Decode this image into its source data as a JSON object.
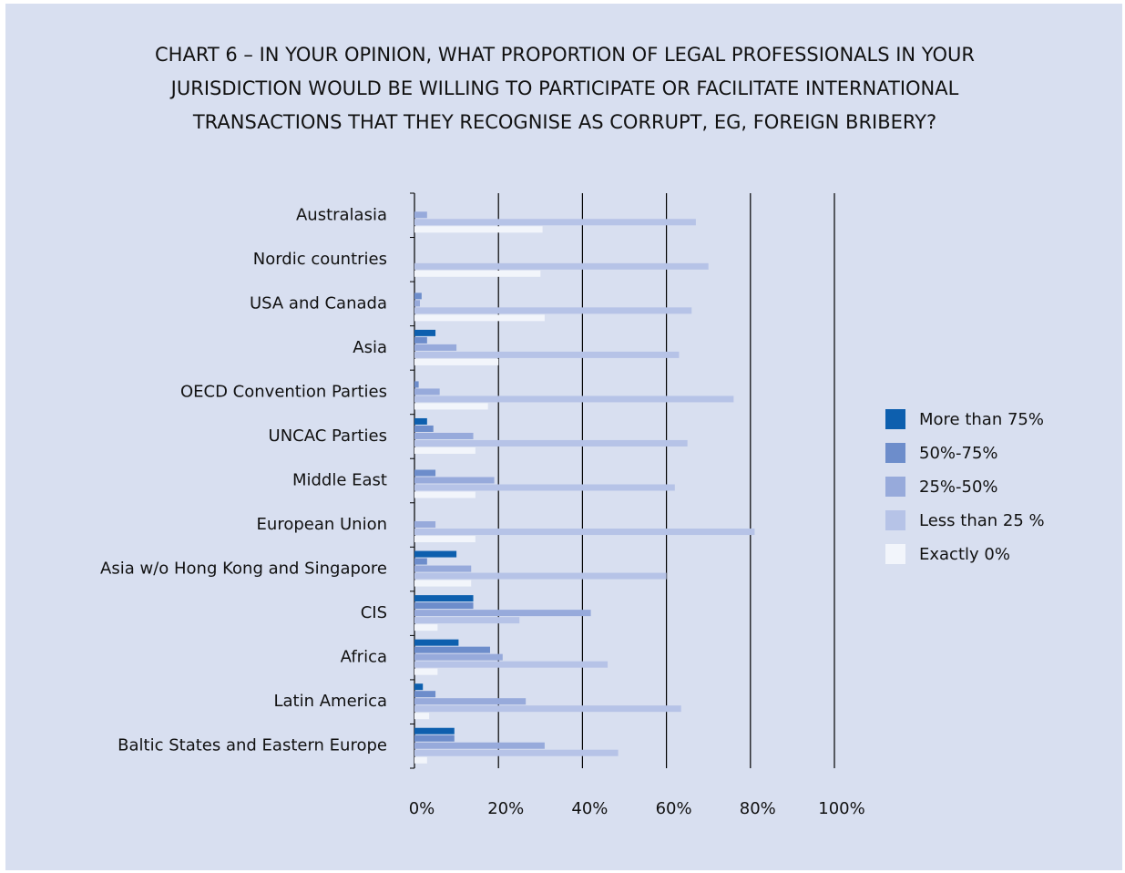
{
  "chart_data": {
    "type": "hbar",
    "title": "CHART 6 – IN YOUR OPINION, WHAT PROPORTION OF LEGAL PROFESSIONALS IN YOUR JURISDICTION WOULD BE WILLING TO PARTICIPATE OR FACILITATE INTERNATIONAL TRANSACTIONS THAT THEY RECOGNISE AS CORRUPT, EG, FOREIGN BRIBERY?",
    "categories": [
      "Australasia",
      "Nordic countries",
      "USA and Canada",
      "Asia",
      "OECD Convention Parties",
      "UNCAC Parties",
      "Middle East",
      "European Union",
      "Asia w/o Hong Kong and Singapore",
      "CIS",
      "Africa",
      "Latin America",
      "Baltic States and Eastern Europe"
    ],
    "series": [
      {
        "name": "More than 75%",
        "color": "#0d5fae",
        "values": [
          0,
          0,
          0,
          5,
          0,
          3,
          0,
          0,
          10,
          14,
          10.5,
          2,
          9.5
        ]
      },
      {
        "name": "50%-75%",
        "color": "#6d8dcb",
        "values": [
          0,
          0,
          1.7,
          3,
          1,
          4.5,
          5,
          0,
          3,
          14,
          18,
          5,
          9.5
        ]
      },
      {
        "name": "25%-50%",
        "color": "#97aadb",
        "values": [
          3,
          0,
          1.3,
          10,
          6,
          14,
          19,
          5,
          13.5,
          42,
          21,
          26.5,
          31
        ]
      },
      {
        "name": "Less than 25 %",
        "color": "#b6c3e7",
        "values": [
          67,
          70,
          66,
          63,
          76,
          65,
          62,
          81,
          60,
          25,
          46,
          63.5,
          48.5
        ]
      },
      {
        "name": "Exactly 0%",
        "color": "#f2f5fb",
        "values": [
          30.5,
          30,
          31,
          20,
          17.5,
          14.5,
          14.5,
          14.5,
          13.5,
          5.5,
          5.5,
          3.5,
          3
        ]
      }
    ],
    "xlim": [
      0,
      100
    ],
    "xticks": [
      {
        "value": 0,
        "label": "0%"
      },
      {
        "value": 20,
        "label": "20%"
      },
      {
        "value": 40,
        "label": "40%"
      },
      {
        "value": 60,
        "label": "60%"
      },
      {
        "value": 80,
        "label": "80%"
      },
      {
        "value": 100,
        "label": "100%"
      }
    ],
    "grid": true,
    "legend": "right"
  }
}
